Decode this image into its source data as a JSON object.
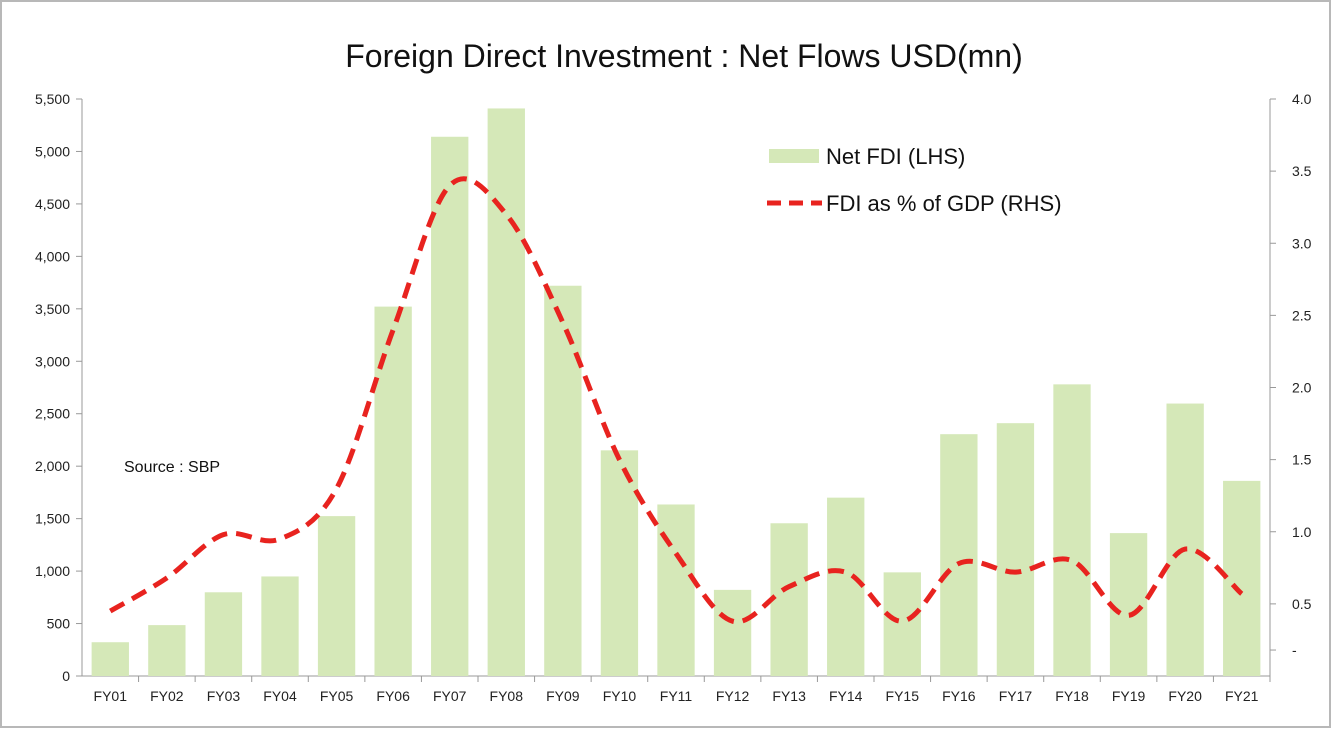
{
  "chart_data": {
    "type": "bar",
    "title": "Foreign Direct Investment : Net Flows USD(mn)",
    "source_note": "Source : SBP",
    "categories": [
      "FY01",
      "FY02",
      "FY03",
      "FY04",
      "FY05",
      "FY06",
      "FY07",
      "FY08",
      "FY09",
      "FY10",
      "FY11",
      "FY12",
      "FY13",
      "FY14",
      "FY15",
      "FY16",
      "FY17",
      "FY18",
      "FY19",
      "FY20",
      "FY21"
    ],
    "series": [
      {
        "name": "Net FDI (LHS)",
        "type": "bar",
        "axis": "left",
        "color": "#d5e8b8",
        "values": [
          322,
          485,
          798,
          949,
          1524,
          3521,
          5140,
          5410,
          3720,
          2151,
          1635,
          821,
          1456,
          1700,
          988,
          2305,
          2410,
          2780,
          1362,
          2597,
          1860
        ]
      },
      {
        "name": "FDI as % of GDP (RHS)",
        "type": "line",
        "style": "dashed",
        "axis": "right",
        "color": "#e8231f",
        "values": [
          0.45,
          0.68,
          0.98,
          0.95,
          1.3,
          2.4,
          3.4,
          3.2,
          2.45,
          1.5,
          0.85,
          0.38,
          0.62,
          0.72,
          0.38,
          0.78,
          0.72,
          0.8,
          0.42,
          0.88,
          0.57
        ]
      }
    ],
    "left_axis": {
      "ylim": [
        0,
        5500
      ],
      "ticks": [
        "0",
        "500",
        "1,000",
        "1,500",
        "2,000",
        "2,500",
        "3,000",
        "3,500",
        "4,000",
        "4,500",
        "5,000",
        "5,500"
      ]
    },
    "right_axis": {
      "ylim": [
        0,
        4.0
      ],
      "ticks": [
        "-",
        "0.5",
        "1.0",
        "1.5",
        "2.0",
        "2.5",
        "3.0",
        "3.5",
        "4.0"
      ]
    },
    "grid": false,
    "legend_position": "top-right"
  }
}
